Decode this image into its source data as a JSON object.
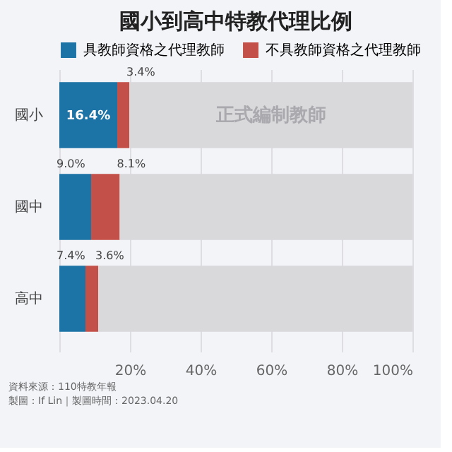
{
  "chart_data": {
    "type": "bar",
    "orientation": "horizontal",
    "stacked": true,
    "title": "國小到高中特教代理比例",
    "categories": [
      "國小",
      "國中",
      "高中"
    ],
    "series": [
      {
        "name": "具教師資格之代理教師",
        "color": "#1c73a6",
        "values": [
          16.4,
          9.0,
          7.4
        ],
        "value_labels": [
          "16.4%",
          "9.0%",
          "7.4%"
        ]
      },
      {
        "name": "不具教師資格之代理教師",
        "color": "#c4504a",
        "values": [
          3.4,
          8.1,
          3.6
        ],
        "value_labels": [
          "3.4%",
          "8.1%",
          "3.6%"
        ]
      },
      {
        "name": "正式編制教師",
        "color": "#d9d9dc",
        "values": [
          80.2,
          82.9,
          89.0
        ],
        "value_labels": [
          null,
          null,
          null
        ]
      }
    ],
    "xlim": [
      0,
      100
    ],
    "xticks": [
      {
        "value": 0,
        "label": null
      },
      {
        "value": 20,
        "label": "20%"
      },
      {
        "value": 40,
        "label": "40%"
      },
      {
        "value": 60,
        "label": "60%"
      },
      {
        "value": 80,
        "label": "80%"
      },
      {
        "value": 100,
        "label": "100%"
      }
    ],
    "grid": "x",
    "legend": "top",
    "annotations": [
      "資料來源：110特教年報",
      "製圖：If Lin｜製圖時間：2023.04.20"
    ]
  }
}
